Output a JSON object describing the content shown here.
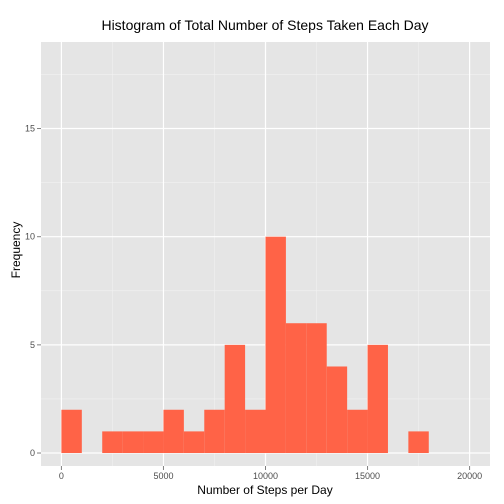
{
  "chart_data": {
    "type": "bar",
    "subtype": "histogram",
    "title": "Histogram of Total Number of Steps Taken Each Day",
    "xlabel": "Number of Steps per Day",
    "ylabel": "Frequency",
    "bin_width": 1000,
    "bins": [
      {
        "start": 0,
        "end": 1000,
        "count": 2
      },
      {
        "start": 1000,
        "end": 2000,
        "count": 0
      },
      {
        "start": 2000,
        "end": 3000,
        "count": 1
      },
      {
        "start": 3000,
        "end": 4000,
        "count": 1
      },
      {
        "start": 4000,
        "end": 5000,
        "count": 1
      },
      {
        "start": 5000,
        "end": 6000,
        "count": 2
      },
      {
        "start": 6000,
        "end": 7000,
        "count": 1
      },
      {
        "start": 7000,
        "end": 8000,
        "count": 2
      },
      {
        "start": 8000,
        "end": 9000,
        "count": 5
      },
      {
        "start": 9000,
        "end": 10000,
        "count": 2
      },
      {
        "start": 10000,
        "end": 11000,
        "count": 10
      },
      {
        "start": 11000,
        "end": 12000,
        "count": 6
      },
      {
        "start": 12000,
        "end": 13000,
        "count": 6
      },
      {
        "start": 13000,
        "end": 14000,
        "count": 4
      },
      {
        "start": 14000,
        "end": 15000,
        "count": 2
      },
      {
        "start": 15000,
        "end": 16000,
        "count": 5
      },
      {
        "start": 16000,
        "end": 17000,
        "count": 0
      },
      {
        "start": 17000,
        "end": 18000,
        "count": 1
      },
      {
        "start": 18000,
        "end": 19000,
        "count": 0
      },
      {
        "start": 19000,
        "end": 20000,
        "count": 0
      }
    ],
    "xlim": [
      -1000,
      21000
    ],
    "ylim": [
      -0.6,
      19
    ],
    "x_ticks": [
      0,
      5000,
      10000,
      15000,
      20000
    ],
    "x_tick_labels": [
      "0",
      "5000",
      "10000",
      "15000",
      "20000"
    ],
    "y_ticks": [
      0,
      5,
      10,
      15
    ],
    "y_tick_labels": [
      "0",
      "5",
      "10",
      "15"
    ],
    "grid": true,
    "colors": {
      "bar": "#ff6347",
      "panel": "#e5e5e5",
      "grid_major": "#ffffff",
      "grid_minor": "#f2f2f2"
    }
  }
}
